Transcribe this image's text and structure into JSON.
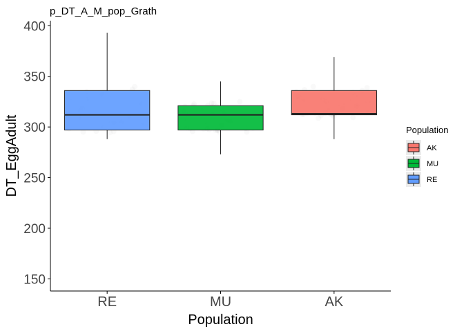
{
  "chart_data": {
    "type": "boxplot",
    "title": "p_DT_A_M_pop_Grath",
    "xlabel": "Population",
    "ylabel": "DT_EggAdult",
    "categories": [
      "RE",
      "MU",
      "AK"
    ],
    "ylim": [
      138,
      405
    ],
    "yticks": [
      150,
      200,
      250,
      300,
      350,
      400
    ],
    "grid": false,
    "boxes": [
      {
        "category": "RE",
        "min": 288,
        "q1": 297,
        "median": 312,
        "q3": 336,
        "max": 393,
        "color": "#619CFF"
      },
      {
        "category": "MU",
        "min": 273,
        "q1": 297,
        "median": 312,
        "q3": 321,
        "max": 345,
        "color": "#00BA38"
      },
      {
        "category": "AK",
        "min": 288,
        "q1": 312,
        "median": 313,
        "q3": 336,
        "max": 369,
        "color": "#F8766D"
      }
    ],
    "legend": {
      "title": "Population",
      "position": "right",
      "entries": [
        {
          "label": "AK",
          "color": "#F8766D"
        },
        {
          "label": "MU",
          "color": "#00BA38"
        },
        {
          "label": "RE",
          "color": "#619CFF"
        }
      ]
    }
  }
}
